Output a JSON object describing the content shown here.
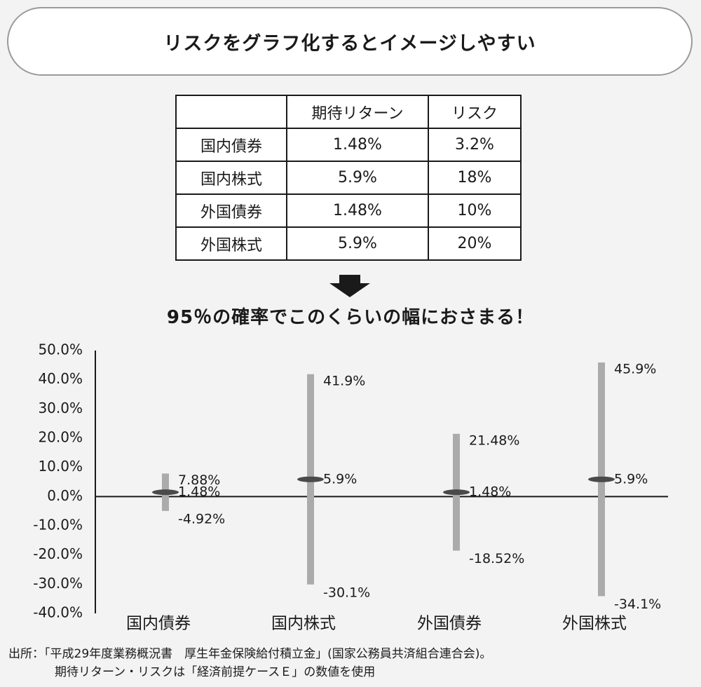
{
  "header": {
    "title": "リスクをグラフ化するとイメージしやすい"
  },
  "table": {
    "headers": [
      "",
      "期待リターン",
      "リスク"
    ],
    "rows": [
      {
        "name": "国内債券",
        "return": "1.48%",
        "risk": "3.2%"
      },
      {
        "name": "国内株式",
        "return": "5.9%",
        "risk": "18%"
      },
      {
        "name": "外国債券",
        "return": "1.48%",
        "risk": "10%"
      },
      {
        "name": "外国株式",
        "return": "5.9%",
        "risk": "20%"
      }
    ]
  },
  "subtitle": "95％の確率でこのくらいの幅におさまる！",
  "chart_data": {
    "type": "range",
    "ylim": [
      -40,
      50
    ],
    "yticks": [
      "50.0%",
      "40.0%",
      "30.0%",
      "20.0%",
      "10.0%",
      "0.0%",
      "-10.0%",
      "-20.0%",
      "-30.0%",
      "-40.0%"
    ],
    "categories": [
      "国内債券",
      "国内株式",
      "外国債券",
      "外国株式"
    ],
    "series": [
      {
        "category": "国内債券",
        "high": 7.88,
        "mid": 1.48,
        "low": -4.92,
        "high_label": "7.88%",
        "mid_label": "1.48%",
        "low_label": "-4.92%"
      },
      {
        "category": "国内株式",
        "high": 41.9,
        "mid": 5.9,
        "low": -30.1,
        "high_label": "41.9%",
        "mid_label": "5.9%",
        "low_label": "-30.1%"
      },
      {
        "category": "外国債券",
        "high": 21.48,
        "mid": 1.48,
        "low": -18.52,
        "high_label": "21.48%",
        "mid_label": "1.48%",
        "low_label": "-18.52%"
      },
      {
        "category": "外国株式",
        "high": 45.9,
        "mid": 5.9,
        "low": -34.1,
        "high_label": "45.9%",
        "mid_label": "5.9%",
        "low_label": "-34.1%"
      }
    ],
    "colors": {
      "bar": "#ababab",
      "marker": "#4a4a4a",
      "axis": "#1a1a1a"
    }
  },
  "source": {
    "line1": "出所：「平成29年度業務概況書　厚生年金保険給付積立金」(国家公務員共済組合連合会)。",
    "line2": "期待リターン・リスクは「経済前提ケースＥ」の数値を使用"
  }
}
